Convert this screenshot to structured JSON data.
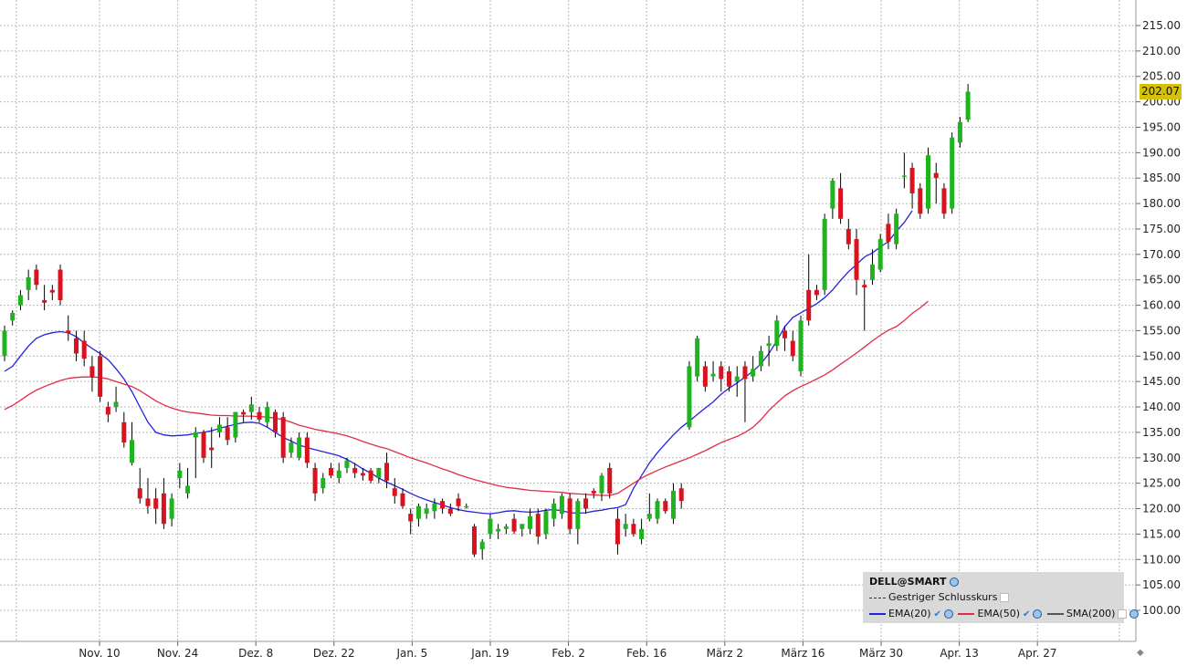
{
  "chart_data": {
    "type": "candlestick",
    "symbol": "DELL@SMART",
    "last_price_label": "202.07",
    "ylim": [
      95,
      220
    ],
    "y_ticks": [
      "100.00",
      "105.00",
      "110.00",
      "115.00",
      "120.00",
      "125.00",
      "130.00",
      "135.00",
      "140.00",
      "145.00",
      "150.00",
      "155.00",
      "160.00",
      "165.00",
      "170.00",
      "175.00",
      "180.00",
      "185.00",
      "190.00",
      "195.00",
      "200.00",
      "205.00",
      "210.00",
      "215.00"
    ],
    "x_ticks": [
      "Nov. 10",
      "Nov. 24",
      "Dez. 8",
      "Dez. 22",
      "Jan. 5",
      "Jan. 19",
      "Feb. 2",
      "Feb. 16",
      "März 2",
      "März 16",
      "März 30",
      "Apr. 13",
      "Apr. 27"
    ],
    "candles": [
      {
        "o": 150,
        "h": 156,
        "l": 149,
        "c": 155
      },
      {
        "o": 157,
        "h": 159,
        "l": 156,
        "c": 158.5
      },
      {
        "o": 160,
        "h": 163,
        "l": 159,
        "c": 162
      },
      {
        "o": 163,
        "h": 167,
        "l": 161,
        "c": 165.5
      },
      {
        "o": 167,
        "h": 168,
        "l": 163,
        "c": 164
      },
      {
        "o": 161,
        "h": 164,
        "l": 159,
        "c": 160.5
      },
      {
        "o": 163,
        "h": 164,
        "l": 161,
        "c": 162.5
      },
      {
        "o": 167,
        "h": 168,
        "l": 160,
        "c": 161
      },
      {
        "o": 155,
        "h": 158,
        "l": 153,
        "c": 154.5
      },
      {
        "o": 153.5,
        "h": 155,
        "l": 149,
        "c": 150.5
      },
      {
        "o": 153,
        "h": 155,
        "l": 148,
        "c": 149.5
      },
      {
        "o": 148,
        "h": 150,
        "l": 143,
        "c": 146
      },
      {
        "o": 150,
        "h": 151,
        "l": 141,
        "c": 142
      },
      {
        "o": 140,
        "h": 141,
        "l": 137,
        "c": 138.5
      },
      {
        "o": 140,
        "h": 144,
        "l": 139,
        "c": 141
      },
      {
        "o": 137,
        "h": 139,
        "l": 132,
        "c": 133
      },
      {
        "o": 129,
        "h": 137,
        "l": 128.5,
        "c": 133.5
      },
      {
        "o": 124,
        "h": 128,
        "l": 121,
        "c": 122
      },
      {
        "o": 122,
        "h": 126,
        "l": 119,
        "c": 120.5
      },
      {
        "o": 122,
        "h": 124,
        "l": 117,
        "c": 120
      },
      {
        "o": 123,
        "h": 126,
        "l": 116,
        "c": 117
      },
      {
        "o": 118,
        "h": 123,
        "l": 116.5,
        "c": 122
      },
      {
        "o": 126,
        "h": 129,
        "l": 124,
        "c": 127.5
      },
      {
        "o": 123,
        "h": 128,
        "l": 122,
        "c": 124.5
      },
      {
        "o": 134,
        "h": 136,
        "l": 126,
        "c": 135
      },
      {
        "o": 135,
        "h": 135.5,
        "l": 129,
        "c": 130
      },
      {
        "o": 132,
        "h": 136,
        "l": 128,
        "c": 131.5
      },
      {
        "o": 135,
        "h": 138,
        "l": 134,
        "c": 136.5
      },
      {
        "o": 136,
        "h": 138,
        "l": 132.5,
        "c": 133.5
      },
      {
        "o": 134,
        "h": 139,
        "l": 133,
        "c": 139
      },
      {
        "o": 139,
        "h": 139.5,
        "l": 137,
        "c": 138.5
      },
      {
        "o": 139,
        "h": 142,
        "l": 137.5,
        "c": 140.5
      },
      {
        "o": 139,
        "h": 140,
        "l": 137,
        "c": 137.5
      },
      {
        "o": 137,
        "h": 141,
        "l": 136,
        "c": 140
      },
      {
        "o": 139,
        "h": 139.5,
        "l": 134,
        "c": 135
      },
      {
        "o": 138,
        "h": 139,
        "l": 129,
        "c": 130
      },
      {
        "o": 131,
        "h": 134,
        "l": 130,
        "c": 133
      },
      {
        "o": 130,
        "h": 135,
        "l": 129.5,
        "c": 134
      },
      {
        "o": 134,
        "h": 135,
        "l": 128,
        "c": 129
      },
      {
        "o": 128,
        "h": 129,
        "l": 121.5,
        "c": 123
      },
      {
        "o": 124,
        "h": 127,
        "l": 123,
        "c": 126
      },
      {
        "o": 128,
        "h": 129,
        "l": 126,
        "c": 126.5
      },
      {
        "o": 126,
        "h": 129,
        "l": 125,
        "c": 127.5
      },
      {
        "o": 128,
        "h": 130,
        "l": 127,
        "c": 129.5
      },
      {
        "o": 128,
        "h": 129,
        "l": 126,
        "c": 127
      },
      {
        "o": 127,
        "h": 128,
        "l": 125.5,
        "c": 126.5
      },
      {
        "o": 127.5,
        "h": 128,
        "l": 125,
        "c": 125.5
      },
      {
        "o": 126,
        "h": 128,
        "l": 125,
        "c": 128
      },
      {
        "o": 129,
        "h": 131,
        "l": 124,
        "c": 125.5
      },
      {
        "o": 124,
        "h": 126,
        "l": 121,
        "c": 122.5
      },
      {
        "o": 123,
        "h": 124,
        "l": 120,
        "c": 120.5
      },
      {
        "o": 119,
        "h": 120,
        "l": 115,
        "c": 117.5
      },
      {
        "o": 118,
        "h": 121,
        "l": 116.5,
        "c": 120.5
      },
      {
        "o": 119,
        "h": 121,
        "l": 118,
        "c": 120
      },
      {
        "o": 119.5,
        "h": 122,
        "l": 118,
        "c": 121
      },
      {
        "o": 121.5,
        "h": 122,
        "l": 119,
        "c": 120
      },
      {
        "o": 120,
        "h": 121,
        "l": 118.5,
        "c": 119
      },
      {
        "o": 122,
        "h": 123,
        "l": 119.5,
        "c": 120.5
      },
      {
        "o": 120.5,
        "h": 121,
        "l": 120,
        "c": 120.5
      },
      {
        "o": 116.5,
        "h": 117,
        "l": 110.5,
        "c": 111
      },
      {
        "o": 112,
        "h": 114,
        "l": 110,
        "c": 113.5
      },
      {
        "o": 115,
        "h": 119,
        "l": 114,
        "c": 118
      },
      {
        "o": 115.5,
        "h": 117,
        "l": 114,
        "c": 116
      },
      {
        "o": 116,
        "h": 117,
        "l": 115,
        "c": 116.5
      },
      {
        "o": 118,
        "h": 119,
        "l": 115,
        "c": 115.5
      },
      {
        "o": 116,
        "h": 117,
        "l": 114.5,
        "c": 117
      },
      {
        "o": 116,
        "h": 120,
        "l": 115,
        "c": 118.5
      },
      {
        "o": 119,
        "h": 120,
        "l": 113,
        "c": 114.5
      },
      {
        "o": 115,
        "h": 120,
        "l": 114,
        "c": 119.5
      },
      {
        "o": 118,
        "h": 122,
        "l": 116.5,
        "c": 121
      },
      {
        "o": 119,
        "h": 123,
        "l": 118,
        "c": 122.5
      },
      {
        "o": 122,
        "h": 123,
        "l": 115,
        "c": 116
      },
      {
        "o": 116,
        "h": 122,
        "l": 113,
        "c": 121.5
      },
      {
        "o": 122,
        "h": 123,
        "l": 119,
        "c": 120
      },
      {
        "o": 123.5,
        "h": 124,
        "l": 122,
        "c": 123
      },
      {
        "o": 123,
        "h": 127,
        "l": 121.5,
        "c": 126.5
      },
      {
        "o": 128,
        "h": 129,
        "l": 122,
        "c": 123
      },
      {
        "o": 118,
        "h": 120,
        "l": 111,
        "c": 113
      },
      {
        "o": 116,
        "h": 119,
        "l": 114.5,
        "c": 117
      },
      {
        "o": 117,
        "h": 118,
        "l": 114.5,
        "c": 115
      },
      {
        "o": 114,
        "h": 118,
        "l": 113,
        "c": 116
      },
      {
        "o": 118,
        "h": 123,
        "l": 117.5,
        "c": 119
      },
      {
        "o": 118,
        "h": 122,
        "l": 117,
        "c": 121.5
      },
      {
        "o": 121.5,
        "h": 122,
        "l": 119,
        "c": 119.5
      },
      {
        "o": 118,
        "h": 125,
        "l": 117,
        "c": 123.5
      },
      {
        "o": 124,
        "h": 125,
        "l": 120,
        "c": 121.5
      },
      {
        "o": 136,
        "h": 149,
        "l": 135.5,
        "c": 148
      },
      {
        "o": 146,
        "h": 154,
        "l": 145,
        "c": 153.5
      },
      {
        "o": 148,
        "h": 149,
        "l": 143,
        "c": 144
      },
      {
        "o": 146,
        "h": 149,
        "l": 145,
        "c": 146.5
      },
      {
        "o": 148,
        "h": 149,
        "l": 143,
        "c": 145.5
      },
      {
        "o": 147,
        "h": 148,
        "l": 143,
        "c": 144
      },
      {
        "o": 145,
        "h": 148,
        "l": 142,
        "c": 146
      },
      {
        "o": 148,
        "h": 149,
        "l": 137,
        "c": 145.5
      },
      {
        "o": 146,
        "h": 150,
        "l": 145,
        "c": 147.5
      },
      {
        "o": 148,
        "h": 152,
        "l": 147,
        "c": 151
      },
      {
        "o": 152,
        "h": 154,
        "l": 148,
        "c": 152.5
      },
      {
        "o": 152,
        "h": 158,
        "l": 151,
        "c": 157
      },
      {
        "o": 155,
        "h": 156,
        "l": 151,
        "c": 153.5
      },
      {
        "o": 153,
        "h": 155,
        "l": 149,
        "c": 150
      },
      {
        "o": 147,
        "h": 158,
        "l": 146,
        "c": 157
      },
      {
        "o": 163,
        "h": 170,
        "l": 156,
        "c": 157
      },
      {
        "o": 163,
        "h": 164,
        "l": 161,
        "c": 162
      },
      {
        "o": 163,
        "h": 178,
        "l": 162,
        "c": 177
      },
      {
        "o": 179,
        "h": 185,
        "l": 177,
        "c": 184.5
      },
      {
        "o": 183,
        "h": 186,
        "l": 176,
        "c": 177
      },
      {
        "o": 175,
        "h": 177,
        "l": 171,
        "c": 172
      },
      {
        "o": 173,
        "h": 175,
        "l": 162,
        "c": 165
      },
      {
        "o": 164,
        "h": 165,
        "l": 155,
        "c": 163.5
      },
      {
        "o": 165,
        "h": 171,
        "l": 164,
        "c": 168
      },
      {
        "o": 167,
        "h": 174,
        "l": 166.5,
        "c": 173
      },
      {
        "o": 176,
        "h": 178,
        "l": 171,
        "c": 172.5
      },
      {
        "o": 172,
        "h": 179,
        "l": 171,
        "c": 178
      },
      {
        "o": 185.5,
        "h": 190,
        "l": 183,
        "c": 185.5
      },
      {
        "o": 187,
        "h": 188,
        "l": 179,
        "c": 182
      },
      {
        "o": 183,
        "h": 184,
        "l": 177,
        "c": 178
      },
      {
        "o": 179,
        "h": 191,
        "l": 178,
        "c": 189.5
      },
      {
        "o": 186,
        "h": 188,
        "l": 180,
        "c": 185
      },
      {
        "o": 183,
        "h": 184,
        "l": 177,
        "c": 178
      },
      {
        "o": 179,
        "h": 194,
        "l": 178,
        "c": 193
      },
      {
        "o": 192,
        "h": 197,
        "l": 191,
        "c": 196
      },
      {
        "o": 196.5,
        "h": 203.5,
        "l": 196,
        "c": 202
      }
    ],
    "series": [
      {
        "name": "EMA(20)",
        "color": "#2323e0",
        "values": [
          147,
          148,
          150,
          152,
          153.5,
          154.2,
          154.6,
          154.8,
          154.6,
          153.8,
          152.6,
          151.5,
          150.5,
          149.3,
          147.5,
          145.5,
          143,
          140,
          137,
          135,
          134.5,
          134.3,
          134.4,
          134.5,
          134.8,
          135,
          135.3,
          135.8,
          136.2,
          136.6,
          136.9,
          137,
          136.8,
          136,
          135,
          134,
          133.3,
          132.5,
          132,
          131.6,
          131.2,
          130.8,
          130.4,
          129.7,
          128.8,
          127.8,
          127,
          126,
          125.2,
          124.5,
          123.8,
          123,
          122.3,
          121.7,
          121.2,
          120.7,
          120.2,
          119.8,
          119.5,
          119.3,
          119.1,
          119,
          119.2,
          119.5,
          119.6,
          119.4,
          119.3,
          119.4,
          119.7,
          119.8,
          119.6,
          119.2,
          119.1,
          119.2,
          119.5,
          119.7,
          120,
          120.2,
          120.8,
          124,
          126.5,
          129,
          131,
          132.8,
          134.5,
          136,
          137.2,
          138.5,
          139.8,
          141,
          142.5,
          143.7,
          144.7,
          145.9,
          147,
          148.5,
          150.5,
          153,
          155.8,
          157.6,
          158.5,
          159.4,
          160.3,
          161.5,
          163,
          164.9,
          166.6,
          168,
          169.5,
          170.3,
          171.5,
          172.5,
          174.5,
          176.3,
          178.6
        ]
      },
      {
        "name": "EMA(50)",
        "color": "#e22b48",
        "values": [
          139.5,
          140.3,
          141.3,
          142.4,
          143.3,
          144,
          144.6,
          145.2,
          145.6,
          145.8,
          145.9,
          145.9,
          145.8,
          145.5,
          145,
          144.5,
          144,
          143.2,
          142.2,
          141.2,
          140.4,
          139.8,
          139.3,
          139,
          138.8,
          138.6,
          138.4,
          138.3,
          138.3,
          138.2,
          138.2,
          138.2,
          138.1,
          138,
          137.8,
          137.5,
          137,
          136.4,
          136,
          135.6,
          135.3,
          135,
          134.7,
          134.3,
          133.8,
          133.2,
          132.7,
          132.2,
          131.8,
          131.2,
          130.6,
          130,
          129.5,
          129,
          128.4,
          127.8,
          127.3,
          126.7,
          126.2,
          125.7,
          125.3,
          124.9,
          124.5,
          124.2,
          124,
          123.8,
          123.6,
          123.5,
          123.4,
          123.3,
          123.2,
          123,
          122.9,
          122.8,
          122.7,
          122.6,
          122.6,
          123,
          124,
          125,
          126,
          126.8,
          127.5,
          128.2,
          128.8,
          129.4,
          130,
          130.7,
          131.4,
          132.2,
          133,
          133.6,
          134.2,
          135,
          136,
          137.5,
          139.3,
          140.8,
          142.2,
          143.2,
          144,
          144.7,
          145.5,
          146.3,
          147.3,
          148.4,
          149.5,
          150.6,
          151.8,
          153,
          154.1,
          155.1,
          155.8,
          157,
          158.4,
          159.5,
          160.8
        ]
      }
    ],
    "legend": {
      "title": "DELL@SMART",
      "prev_close": "Gestriger Schlusskurs",
      "ema20": "EMA(20)",
      "ema50": "EMA(50)",
      "sma200": "SMA(200)"
    },
    "colors": {
      "up": "#1fb31f",
      "down": "#d8121e",
      "wick": "#000000",
      "price_tag": "#d4c20a",
      "legend_bg": "#d9d9d9",
      "grid": "#b8b8b8"
    },
    "grid": true,
    "legend_position": "bottom-right"
  }
}
